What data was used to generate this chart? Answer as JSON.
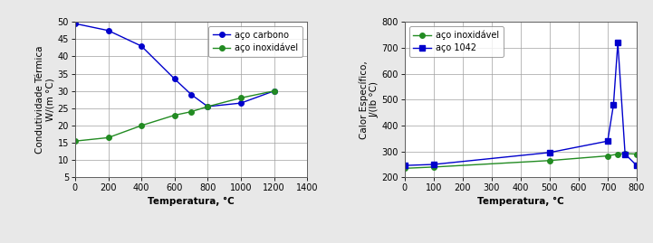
{
  "chart1": {
    "xlabel": "Temperatura, °C",
    "ylabel": "Condutividade Térmica\nW/(m °C)",
    "xlim": [
      0,
      1400
    ],
    "ylim": [
      5,
      50
    ],
    "xticks": [
      0,
      200,
      400,
      600,
      800,
      1000,
      1200,
      1400
    ],
    "yticks": [
      5,
      10,
      15,
      20,
      25,
      30,
      35,
      40,
      45,
      50
    ],
    "series": [
      {
        "label": "aço carbono",
        "color": "#0000CC",
        "marker": "o",
        "markersize": 4,
        "x": [
          0,
          200,
          400,
          600,
          700,
          800,
          1000,
          1200
        ],
        "y": [
          49.5,
          47.5,
          43.0,
          33.5,
          29.0,
          25.5,
          26.5,
          30.0
        ]
      },
      {
        "label": "aço inoxidável",
        "color": "#228B22",
        "marker": "o",
        "markersize": 4,
        "x": [
          0,
          200,
          400,
          600,
          700,
          800,
          1000,
          1200
        ],
        "y": [
          15.5,
          16.5,
          20.0,
          23.0,
          24.0,
          25.5,
          28.0,
          30.0
        ]
      }
    ],
    "legend_loc": "upper right"
  },
  "chart2": {
    "xlabel": "Temperatura, °C",
    "ylabel": "Calor Específico,\nJ/(lb °C)",
    "xlim": [
      0,
      800
    ],
    "ylim": [
      200,
      800
    ],
    "xticks": [
      0,
      100,
      200,
      300,
      400,
      500,
      600,
      700,
      800
    ],
    "yticks": [
      200,
      300,
      400,
      500,
      600,
      700,
      800
    ],
    "series": [
      {
        "label": "aço inoxidável",
        "color": "#228B22",
        "marker": "o",
        "markersize": 4,
        "x": [
          0,
          100,
          500,
          700,
          735,
          760,
          800
        ],
        "y": [
          235,
          240,
          265,
          283,
          290,
          292,
          290
        ]
      },
      {
        "label": "aço 1042",
        "color": "#0000CC",
        "marker": "s",
        "markersize": 4,
        "x": [
          0,
          100,
          500,
          700,
          720,
          735,
          760,
          800
        ],
        "y": [
          246,
          250,
          296,
          340,
          480,
          720,
          290,
          246
        ]
      }
    ],
    "legend_loc": "upper left"
  },
  "bg_color": "#E8E8E8",
  "plot_bg_color": "#FFFFFF",
  "grid_color": "#A0A0A0",
  "tick_fontsize": 7,
  "label_fontsize": 7.5,
  "legend_fontsize": 7,
  "linewidth": 1.0
}
